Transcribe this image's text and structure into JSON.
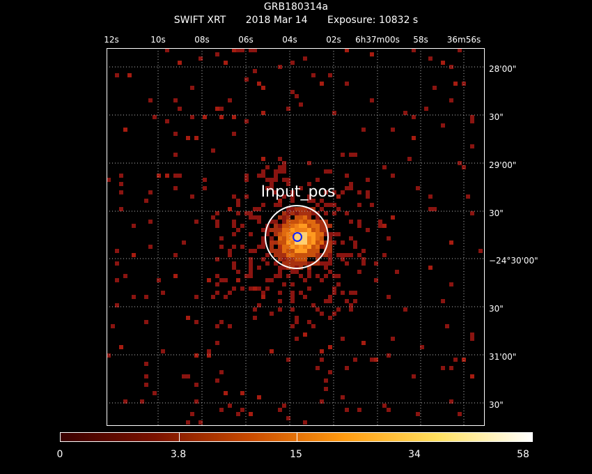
{
  "header": {
    "target": "GRB180314a",
    "instrument": "SWIFT XRT",
    "date": "2018 Mar 14",
    "exposure": "Exposure: 10832 s"
  },
  "ra_ticks": [
    "12s",
    "10s",
    "08s",
    "06s",
    "04s",
    "02s",
    "6h37m00s",
    "58s",
    "36m56s"
  ],
  "dec_ticks": [
    "28'00\"",
    "30\"",
    "29'00\"",
    "30\"",
    "−24°30'00\"",
    "30\"",
    "31'00\"",
    "30\""
  ],
  "source_label": "Input_pos",
  "colorbar": {
    "ticks": [
      "0",
      "3.8",
      "15",
      "34",
      "58"
    ],
    "colors": [
      "#3a0000",
      "#7a1200",
      "#c84a00",
      "#ff9a10",
      "#ffe060",
      "#ffffff"
    ]
  }
}
